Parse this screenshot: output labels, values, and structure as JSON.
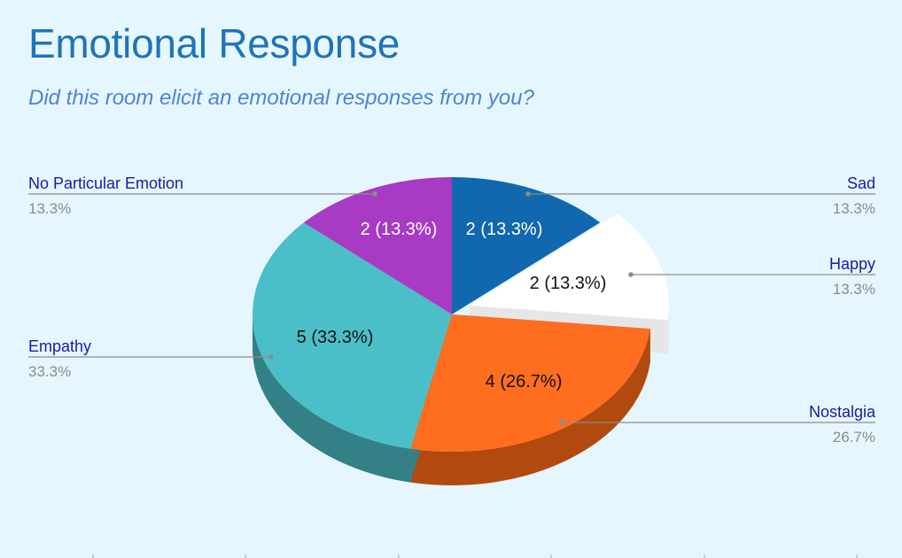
{
  "title": "Emotional Response",
  "subtitle": "Did this room elicit an emotional responses from you?",
  "chart_data": {
    "type": "pie",
    "style": "3d",
    "total": 15,
    "slices": [
      {
        "label": "Sad",
        "value": 2,
        "percent": 13.3,
        "data_label": "2 (13.3%)",
        "legend_value": "13.3%",
        "color": "#1268ae",
        "side_color": "#0d4f85"
      },
      {
        "label": "Happy",
        "value": 2,
        "percent": 13.3,
        "data_label": "2 (13.3%)",
        "legend_value": "13.3%",
        "color": "#ffffff",
        "side_color": "#e6e6e6"
      },
      {
        "label": "Nostalgia",
        "value": 4,
        "percent": 26.7,
        "data_label": "4 (26.7%)",
        "legend_value": "26.7%",
        "color": "#ff6d1f",
        "side_color": "#b2490e"
      },
      {
        "label": "Empathy",
        "value": 5,
        "percent": 33.3,
        "data_label": "5 (33.3%)",
        "legend_value": "33.3%",
        "color": "#4bbfc7",
        "side_color": "#338187"
      },
      {
        "label": "No Particular Emotion",
        "value": 2,
        "percent": 13.3,
        "data_label": "2 (13.3%)",
        "legend_value": "13.3%",
        "color": "#a73bc4",
        "side_color": "#7a2a8f"
      }
    ],
    "label_color": "#1a1aa6",
    "percent_color": "#8c8c8c"
  }
}
